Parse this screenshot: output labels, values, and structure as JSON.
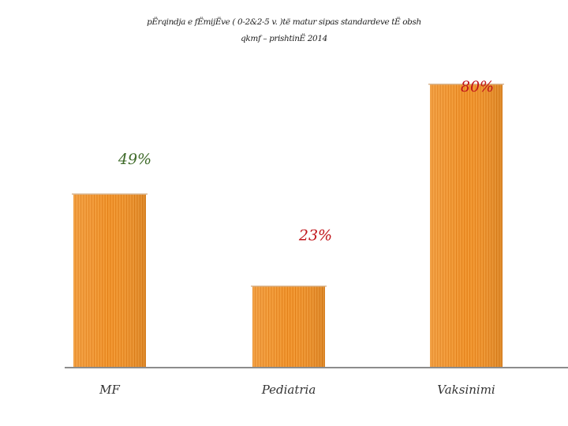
{
  "chart_data": {
    "type": "bar",
    "title_lines": [
      "pËrqindja e fËmijËve ( 0-2&2-5 v. )të matur sipas standardeve tË obsh",
      "qkmf – prishtinË 2014"
    ],
    "categories": [
      "MF",
      "Pediatria",
      "Vaksinimi"
    ],
    "values": [
      49,
      23,
      80
    ],
    "data_labels": [
      "49%",
      "23%",
      "80%"
    ],
    "label_colors": [
      "#3f6b2a",
      "#c0151b",
      "#c0151b"
    ],
    "ylim": [
      0,
      100
    ],
    "xlabel": "",
    "ylabel": "",
    "grid": false,
    "legend": "none",
    "bar_color": "#f39a35",
    "bar_stripe_color": "#e27f17"
  }
}
